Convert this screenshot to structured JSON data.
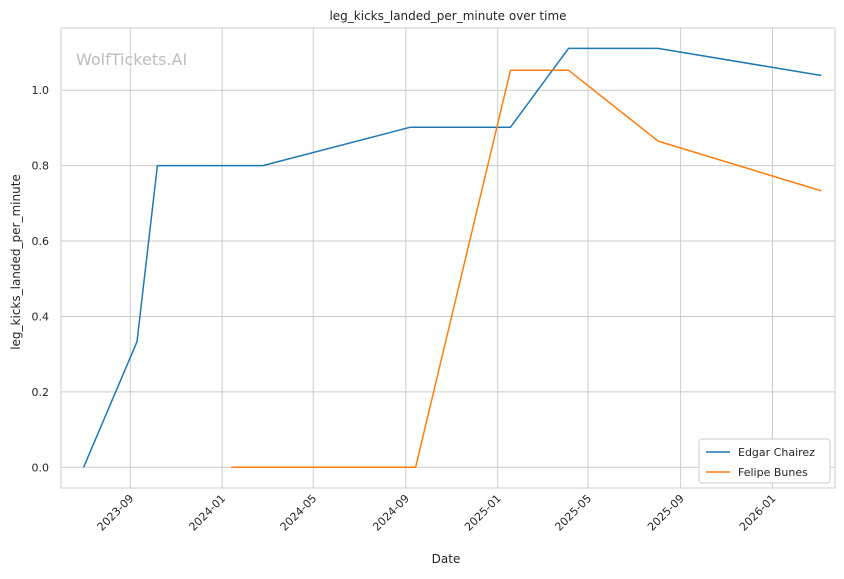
{
  "chart_data": {
    "type": "line",
    "title": "leg_kicks_landed_per_minute over time",
    "xlabel": "Date",
    "ylabel": "leg_kicks_landed_per_minute",
    "watermark": "WolfTickets.AI",
    "grid": true,
    "legend_position": "bottom-right",
    "x_ticks": [
      "2023-09",
      "2024-01",
      "2024-05",
      "2024-09",
      "2025-01",
      "2025-05",
      "2025-09",
      "2026-01"
    ],
    "y_ticks": [
      "0.0",
      "0.2",
      "0.4",
      "0.6",
      "0.8",
      "1.0"
    ],
    "xlim": [
      "2023-06-01",
      "2026-03-25"
    ],
    "ylim": [
      -0.055,
      1.165
    ],
    "series": [
      {
        "name": "Edgar Chairez",
        "color": "#1f77b4",
        "points": [
          [
            "2023-07-01",
            0.0
          ],
          [
            "2023-09-10",
            0.333
          ],
          [
            "2023-10-07",
            0.8
          ],
          [
            "2024-02-24",
            0.8
          ],
          [
            "2024-09-07",
            0.902
          ],
          [
            "2025-01-18",
            0.902
          ],
          [
            "2025-04-05",
            1.111
          ],
          [
            "2025-08-02",
            1.111
          ],
          [
            "2026-03-07",
            1.039
          ]
        ]
      },
      {
        "name": "Felipe Bunes",
        "color": "#ff7f0e",
        "points": [
          [
            "2024-01-13",
            0.0
          ],
          [
            "2024-09-14",
            0.0
          ],
          [
            "2025-01-18",
            1.053
          ],
          [
            "2025-04-05",
            1.053
          ],
          [
            "2025-08-02",
            0.865
          ],
          [
            "2026-03-07",
            0.733
          ]
        ]
      }
    ]
  }
}
